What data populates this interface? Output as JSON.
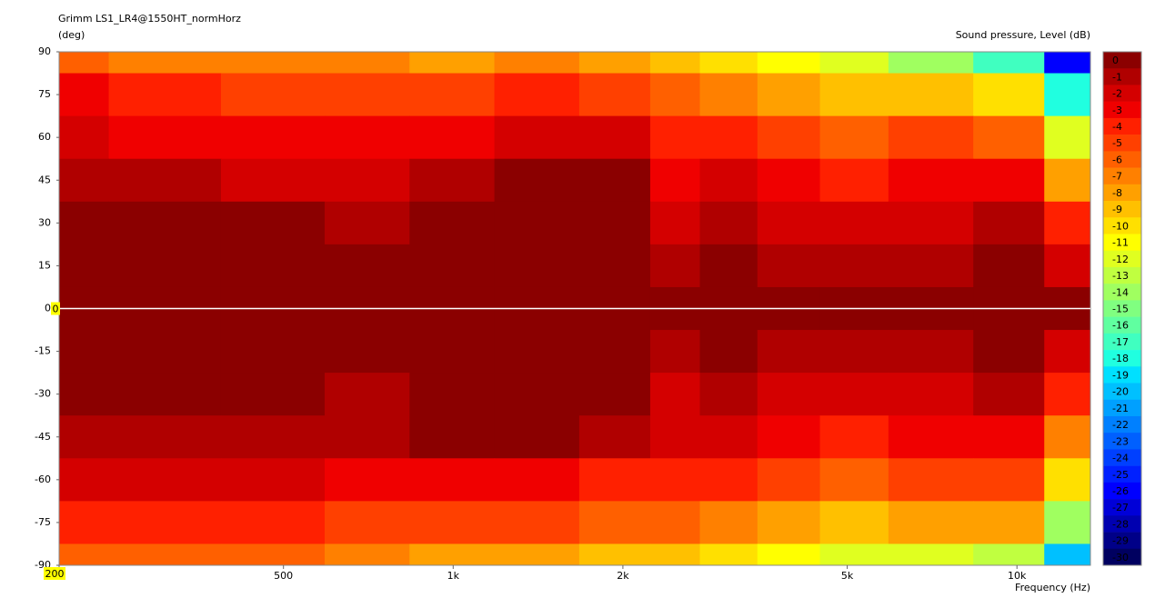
{
  "chart_data": {
    "type": "contour",
    "title": "Grimm LS1_LR4@1550HT_normHorz",
    "y_label": "(deg)",
    "colorbar_label": "Sound pressure, Level  (dB)",
    "x_label": "Frequency  (Hz)",
    "x_cursor_label": "200",
    "y_cursor_label": "0",
    "log_x": true,
    "xlim": [
      200,
      13500
    ],
    "ylim": [
      -90,
      90
    ],
    "xticks": [
      200,
      500,
      {
        "value": 1000,
        "label": "1k"
      },
      {
        "value": 2000,
        "label": "2k"
      },
      {
        "value": 5000,
        "label": "5k"
      },
      {
        "value": 10000,
        "label": "10k"
      }
    ],
    "yticks": [
      90,
      75,
      60,
      45,
      30,
      15,
      0,
      -15,
      -30,
      -45,
      -60,
      -75,
      -90
    ],
    "x": [
      200,
      300,
      500,
      700,
      1000,
      1400,
      2000,
      2500,
      3000,
      4000,
      5000,
      7000,
      10000,
      12500
    ],
    "y": [
      90,
      75,
      60,
      45,
      30,
      15,
      0,
      -15,
      -30,
      -45,
      -60,
      -75,
      -90
    ],
    "z": [
      [
        -6,
        -7,
        -7,
        -7,
        -8,
        -7,
        -8,
        -9,
        -10,
        -11,
        -12,
        -14,
        -17,
        -26
      ],
      [
        -3,
        -4,
        -5,
        -5,
        -5,
        -4,
        -5,
        -6,
        -7,
        -8,
        -9,
        -9,
        -10,
        -18
      ],
      [
        -2,
        -3,
        -3,
        -3,
        -3,
        -2,
        -2,
        -4,
        -4,
        -5,
        -6,
        -5,
        -6,
        -12
      ],
      [
        -1,
        -1,
        -2,
        -2,
        -1,
        0,
        0,
        -3,
        -2,
        -3,
        -4,
        -3,
        -3,
        -8
      ],
      [
        0,
        0,
        0,
        -1,
        0,
        0,
        0,
        -2,
        -1,
        -2,
        -2,
        -2,
        -1,
        -4
      ],
      [
        0,
        0,
        0,
        0,
        0,
        0,
        0,
        -1,
        0,
        -1,
        -1,
        -1,
        0,
        -2
      ],
      [
        0,
        0,
        0,
        0,
        0,
        0,
        0,
        0,
        0,
        0,
        0,
        0,
        0,
        0
      ],
      [
        0,
        0,
        0,
        0,
        0,
        0,
        0,
        -1,
        0,
        -1,
        -1,
        -1,
        0,
        -2
      ],
      [
        0,
        0,
        0,
        -1,
        0,
        0,
        0,
        -2,
        -1,
        -2,
        -2,
        -2,
        -1,
        -4
      ],
      [
        -1,
        -1,
        -1,
        -1,
        0,
        0,
        -1,
        -2,
        -2,
        -3,
        -4,
        -3,
        -3,
        -7
      ],
      [
        -2,
        -2,
        -2,
        -3,
        -3,
        -3,
        -4,
        -4,
        -4,
        -5,
        -6,
        -5,
        -5,
        -10
      ],
      [
        -4,
        -4,
        -4,
        -5,
        -5,
        -5,
        -6,
        -6,
        -7,
        -8,
        -9,
        -8,
        -8,
        -14
      ],
      [
        -6,
        -6,
        -6,
        -7,
        -8,
        -8,
        -9,
        -9,
        -10,
        -11,
        -12,
        -12,
        -13,
        -20
      ]
    ],
    "zero_line_color": "#ffffff",
    "colorbar": {
      "levels": [
        0,
        -1,
        -2,
        -3,
        -4,
        -5,
        -6,
        -7,
        -8,
        -9,
        -10,
        -11,
        -12,
        -13,
        -14,
        -15,
        -16,
        -17,
        -18,
        -19,
        -20,
        -21,
        -22,
        -23,
        -24,
        -25,
        -26,
        -27,
        -28,
        -29,
        -30
      ],
      "colors": [
        "#8b0000",
        "#b00000",
        "#d40000",
        "#f00000",
        "#ff2000",
        "#ff4000",
        "#ff6000",
        "#ff8000",
        "#ffa000",
        "#ffc000",
        "#ffe000",
        "#ffff00",
        "#e0ff20",
        "#c0ff40",
        "#a0ff60",
        "#80ff80",
        "#60ffa0",
        "#40ffc0",
        "#20ffe0",
        "#00e0ff",
        "#00c0ff",
        "#00a0ff",
        "#0080ff",
        "#0060ff",
        "#0040ff",
        "#0020ff",
        "#0000ff",
        "#0000d8",
        "#0000b0",
        "#000088",
        "#000060"
      ]
    }
  }
}
